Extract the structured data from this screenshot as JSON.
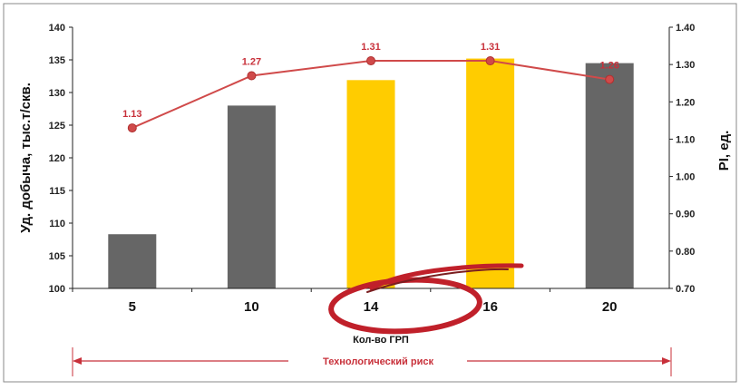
{
  "chart_data": {
    "type": "bar",
    "categories": [
      "5",
      "10",
      "14",
      "16",
      "20"
    ],
    "xlabel": "Кол-во ГРП",
    "ylabel": "Уд. добыча, тыс.т/скв.",
    "ylabel_right": "PI, ед.",
    "ylim": [
      100,
      140
    ],
    "y_ticks": [
      "100",
      "105",
      "110",
      "115",
      "120",
      "125",
      "130",
      "135",
      "140"
    ],
    "ylim_right": [
      0.7,
      1.4
    ],
    "y_ticks_right": [
      "0.70",
      "0.80",
      "0.90",
      "1.00",
      "1.10",
      "1.20",
      "1.30",
      "1.40"
    ],
    "series": [
      {
        "type": "bar",
        "axis": "left",
        "values": [
          108.3,
          128.0,
          131.9,
          135.2,
          134.5
        ],
        "colors": [
          "#666666",
          "#666666",
          "#ffcc00",
          "#ffcc00",
          "#666666"
        ]
      },
      {
        "type": "line",
        "axis": "right",
        "color": "#d04a4a",
        "values": [
          1.13,
          1.27,
          1.31,
          1.31,
          1.26
        ],
        "labels": [
          "1.13",
          "1.27",
          "1.31",
          "1.31",
          "1.26"
        ]
      }
    ],
    "annotation": "Технологический риск",
    "grid": false,
    "legend": "none"
  }
}
